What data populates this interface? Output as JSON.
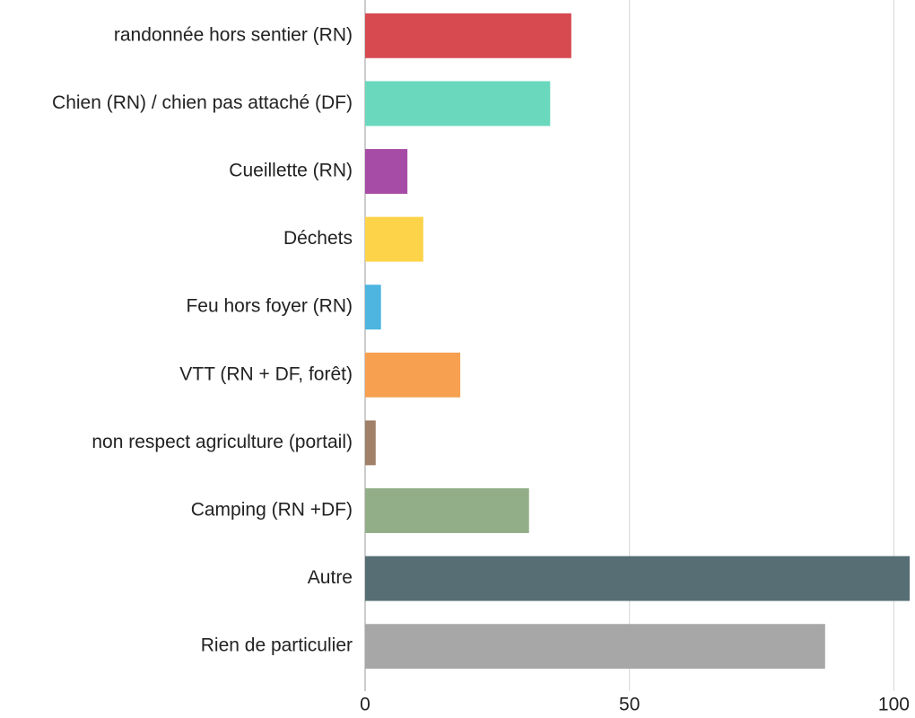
{
  "chart_data": {
    "type": "bar",
    "orientation": "horizontal",
    "categories": [
      "randonnée hors sentier (RN)",
      "Chien (RN) / chien pas attaché (DF)",
      "Cueillette (RN)",
      "Déchets",
      "Feu hors foyer (RN)",
      "VTT (RN + DF, forêt)",
      "non respect agriculture (portail)",
      "Camping (RN +DF)",
      "Autre",
      "Rien de particulier"
    ],
    "values": [
      39,
      35,
      8,
      11,
      3,
      18,
      2,
      31,
      103,
      87
    ],
    "colors": [
      "#d64a50",
      "#6ad8bd",
      "#a64ca6",
      "#fdd349",
      "#4db5e0",
      "#f6a050",
      "#a08068",
      "#92ae88",
      "#566e74",
      "#a7a7a7"
    ],
    "xlim": [
      0,
      104
    ],
    "xticks": [
      0,
      50,
      100
    ],
    "grid": true
  }
}
